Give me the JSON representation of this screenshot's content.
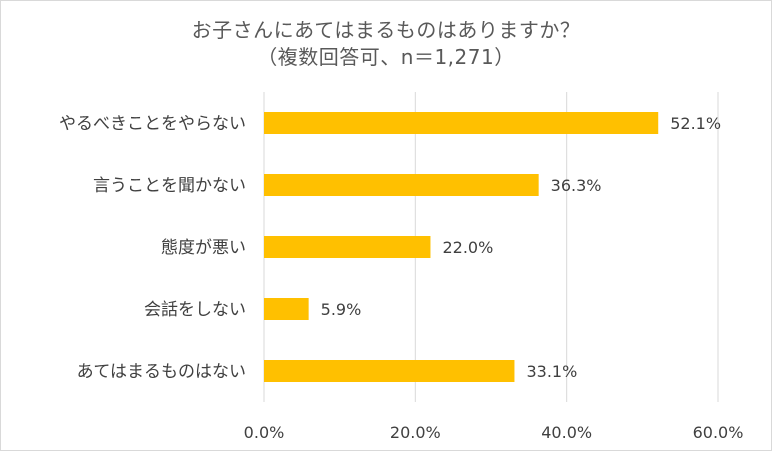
{
  "chart_data": {
    "type": "bar",
    "orientation": "horizontal",
    "title": "お子さんにあてはまるものはありますか？",
    "subtitle": "（複数回答可、n＝1,271）",
    "categories": [
      "やるべきことをやらない",
      "言うことを聞かない",
      "態度が悪い",
      "会話をしない",
      "あてはまるものはない"
    ],
    "values": [
      52.1,
      36.3,
      22.0,
      5.9,
      33.1
    ],
    "data_labels": [
      "52.1%",
      "36.3%",
      "22.0%",
      "5.9%",
      "33.1%"
    ],
    "x_ticks": [
      "0.0%",
      "20.0%",
      "40.0%",
      "60.0%"
    ],
    "xlim": [
      0,
      60
    ],
    "grid": "vertical",
    "legend": "none",
    "bar_color": "#FFC000",
    "grid_color": "#d9d9d9"
  }
}
